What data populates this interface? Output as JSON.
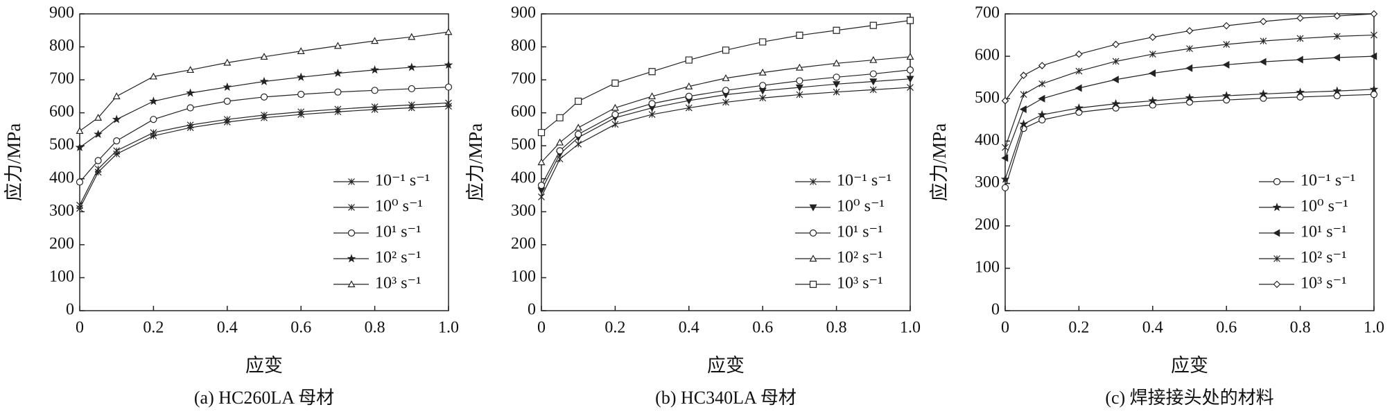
{
  "chart_data": [
    {
      "type": "line",
      "caption": "(a) HC260LA 母材",
      "xlabel": "应变",
      "ylabel": "应力/MPa",
      "x": [
        0,
        0.05,
        0.1,
        0.2,
        0.3,
        0.4,
        0.5,
        0.6,
        0.7,
        0.8,
        0.9,
        1.0
      ],
      "xlim": [
        0,
        1
      ],
      "xticks": [
        0,
        0.2,
        0.4,
        0.6,
        0.8,
        {
          "value": 1,
          "label": "1.0"
        }
      ],
      "ylim": [
        0,
        900
      ],
      "yticks": [
        0,
        100,
        200,
        300,
        400,
        500,
        600,
        700,
        800,
        900
      ],
      "series": [
        {
          "name": "10⁻¹ s⁻¹",
          "color": "#222",
          "marker": "asterisk",
          "values": [
            310,
            420,
            475,
            530,
            555,
            572,
            585,
            595,
            603,
            610,
            615,
            620
          ]
        },
        {
          "name": "10⁰ s⁻¹",
          "color": "#222",
          "marker": "x",
          "values": [
            320,
            430,
            485,
            540,
            563,
            580,
            593,
            603,
            611,
            618,
            624,
            630
          ]
        },
        {
          "name": "10¹ s⁻¹",
          "color": "#222",
          "marker": "circle",
          "values": [
            390,
            455,
            515,
            580,
            615,
            635,
            648,
            656,
            663,
            668,
            673,
            678
          ]
        },
        {
          "name": "10² s⁻¹",
          "color": "#222",
          "marker": "star",
          "values": [
            495,
            535,
            580,
            635,
            660,
            678,
            695,
            708,
            720,
            730,
            738,
            745
          ]
        },
        {
          "name": "10³ s⁻¹",
          "color": "#222",
          "marker": "triangle",
          "values": [
            545,
            585,
            650,
            710,
            730,
            752,
            770,
            787,
            803,
            818,
            830,
            845
          ]
        }
      ]
    },
    {
      "type": "line",
      "caption": "(b) HC340LA 母材",
      "xlabel": "应变",
      "ylabel": "应力/MPa",
      "x": [
        0,
        0.05,
        0.1,
        0.2,
        0.3,
        0.4,
        0.5,
        0.6,
        0.7,
        0.8,
        0.9,
        1.0
      ],
      "xlim": [
        0,
        1
      ],
      "xticks": [
        0,
        0.2,
        0.4,
        0.6,
        0.8,
        {
          "value": 1,
          "label": "1.0"
        }
      ],
      "ylim": [
        0,
        900
      ],
      "yticks": [
        0,
        100,
        200,
        300,
        400,
        500,
        600,
        700,
        800,
        900
      ],
      "series": [
        {
          "name": "10⁻¹ s⁻¹",
          "color": "#222",
          "marker": "x",
          "values": [
            345,
            460,
            505,
            565,
            595,
            615,
            632,
            645,
            655,
            663,
            670,
            677
          ]
        },
        {
          "name": "10⁰ s⁻¹",
          "color": "#222",
          "marker": "triangle-down",
          "values": [
            365,
            475,
            525,
            585,
            615,
            637,
            655,
            667,
            677,
            687,
            695,
            703
          ]
        },
        {
          "name": "10¹ s⁻¹",
          "color": "#222",
          "marker": "circle",
          "values": [
            380,
            485,
            535,
            595,
            628,
            650,
            668,
            683,
            697,
            708,
            718,
            730
          ]
        },
        {
          "name": "10² s⁻¹",
          "color": "#222",
          "marker": "triangle",
          "values": [
            450,
            510,
            555,
            615,
            650,
            680,
            705,
            722,
            737,
            750,
            760,
            770
          ]
        },
        {
          "name": "10³ s⁻¹",
          "color": "#222",
          "marker": "square",
          "values": [
            540,
            585,
            635,
            690,
            725,
            760,
            790,
            815,
            835,
            850,
            865,
            880
          ]
        }
      ]
    },
    {
      "type": "line",
      "caption": "(c) 焊接接头处的材料",
      "xlabel": "应变",
      "ylabel": "应力/MPa",
      "x": [
        0,
        0.05,
        0.1,
        0.2,
        0.3,
        0.4,
        0.5,
        0.6,
        0.7,
        0.8,
        0.9,
        1.0
      ],
      "xlim": [
        0,
        1
      ],
      "xticks": [
        0,
        0.2,
        0.4,
        0.6,
        0.8,
        {
          "value": 1,
          "label": "1.0"
        }
      ],
      "ylim": [
        0,
        700
      ],
      "yticks": [
        0,
        100,
        200,
        300,
        400,
        500,
        600,
        700
      ],
      "series": [
        {
          "name": "10⁻¹ s⁻¹",
          "color": "#222",
          "marker": "circle",
          "values": [
            290,
            430,
            450,
            468,
            478,
            485,
            492,
            497,
            501,
            504,
            507,
            510
          ]
        },
        {
          "name": "10⁰ s⁻¹",
          "color": "#222",
          "marker": "star",
          "values": [
            310,
            440,
            462,
            478,
            488,
            495,
            502,
            507,
            511,
            515,
            518,
            522
          ]
        },
        {
          "name": "10¹ s⁻¹",
          "color": "#222",
          "marker": "triangle-left",
          "values": [
            360,
            475,
            500,
            525,
            545,
            560,
            572,
            580,
            587,
            592,
            597,
            600
          ]
        },
        {
          "name": "10² s⁻¹",
          "color": "#222",
          "marker": "x",
          "values": [
            385,
            510,
            535,
            565,
            588,
            605,
            618,
            628,
            636,
            642,
            647,
            650
          ]
        },
        {
          "name": "10³ s⁻¹",
          "color": "#222",
          "marker": "diamond",
          "values": [
            495,
            555,
            578,
            605,
            628,
            645,
            660,
            672,
            682,
            690,
            695,
            700
          ]
        }
      ]
    }
  ]
}
